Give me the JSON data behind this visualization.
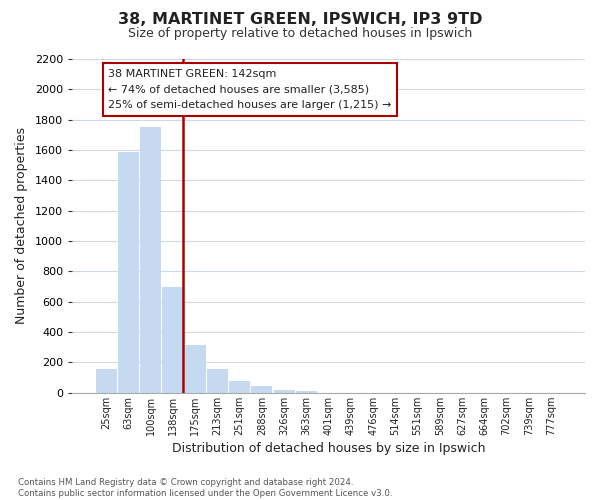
{
  "title": "38, MARTINET GREEN, IPSWICH, IP3 9TD",
  "subtitle": "Size of property relative to detached houses in Ipswich",
  "xlabel": "Distribution of detached houses by size in Ipswich",
  "ylabel": "Number of detached properties",
  "footer_line1": "Contains HM Land Registry data © Crown copyright and database right 2024.",
  "footer_line2": "Contains public sector information licensed under the Open Government Licence v3.0.",
  "bin_labels": [
    "25sqm",
    "63sqm",
    "100sqm",
    "138sqm",
    "175sqm",
    "213sqm",
    "251sqm",
    "288sqm",
    "326sqm",
    "363sqm",
    "401sqm",
    "439sqm",
    "476sqm",
    "514sqm",
    "551sqm",
    "589sqm",
    "627sqm",
    "664sqm",
    "702sqm",
    "739sqm",
    "777sqm"
  ],
  "bar_values": [
    160,
    1590,
    1750,
    700,
    315,
    155,
    80,
    45,
    20,
    10,
    0,
    0,
    0,
    0,
    0,
    0,
    0,
    0,
    0,
    0,
    0
  ],
  "bar_color_normal": "#c5d9f0",
  "highlight_color": "#aa0000",
  "ylim": [
    0,
    2200
  ],
  "yticks": [
    0,
    200,
    400,
    600,
    800,
    1000,
    1200,
    1400,
    1600,
    1800,
    2000,
    2200
  ],
  "annotation_title": "38 MARTINET GREEN: 142sqm",
  "annotation_line1": "← 74% of detached houses are smaller (3,585)",
  "annotation_line2": "25% of semi-detached houses are larger (1,215) →",
  "property_bar_index": 3,
  "grid_color": "#d0d8e8",
  "background_color": "#ffffff"
}
